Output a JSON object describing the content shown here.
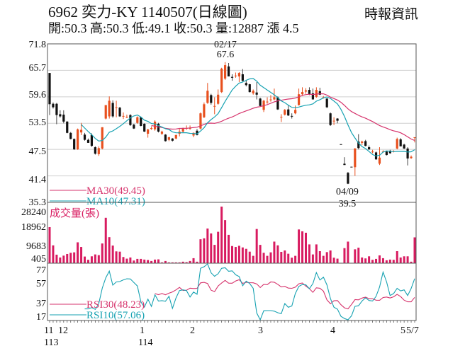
{
  "header": {
    "title": "6962  奕力-KY 1140507(日線圖)",
    "quote": "開:50.3 高:50.3 低:49.1 收:50.3 量:12887 漲 4.5",
    "source": "時報資訊"
  },
  "colors": {
    "up": "#e8501e",
    "down": "#111111",
    "ma30": "#d6336c",
    "ma10": "#17a2b2",
    "volume": "#d81b60",
    "rsi30": "#d6336c",
    "rsi10": "#17a2b2",
    "grid": "#cfcfcf"
  },
  "xaxis": {
    "months": [
      "11",
      "12",
      "1",
      "2",
      "3",
      "4",
      "5",
      "5/7"
    ],
    "years": [
      "113",
      "114"
    ]
  },
  "chart_data": [
    {
      "type": "candlestick",
      "ylim": [
        35.3,
        71.8
      ],
      "yticks": [
        "71.8",
        "65.7",
        "59.6",
        "53.5",
        "47.5",
        "41.4",
        "35.3"
      ],
      "grid": true,
      "legend": {
        "ma30": "MA30(49.45)",
        "ma10": "MA10(47.31)"
      },
      "annotations": [
        {
          "date": "02/17",
          "value": "67.6"
        },
        {
          "date": "04/09",
          "value": "39.5"
        }
      ],
      "ohlc": [
        [
          65.1,
          65.1,
          55.4,
          57.9
        ],
        [
          58.0,
          58.3,
          56.9,
          57.2
        ],
        [
          58,
          58.2,
          53.3,
          55.4
        ],
        [
          55.6,
          56.5,
          54.8,
          55.1
        ],
        [
          55.5,
          56.5,
          53.5,
          53.9
        ],
        [
          53.9,
          54,
          51.2,
          51.3
        ],
        [
          51.3,
          51.5,
          49.8,
          49.9
        ],
        [
          49.9,
          50,
          47.4,
          47.5
        ],
        [
          47.5,
          52.3,
          47.4,
          52.1
        ],
        [
          51.4,
          53.6,
          50.8,
          52
        ],
        [
          50.9,
          51.3,
          49.5,
          49.7
        ],
        [
          49.7,
          50,
          49,
          49
        ],
        [
          50.8,
          51.2,
          48.1,
          48.3
        ],
        [
          48,
          48.2,
          46.3,
          46.5
        ],
        [
          46.4,
          48.2,
          46,
          47.8
        ],
        [
          47.7,
          52.6,
          47.5,
          52.6
        ],
        [
          54.6,
          57.7,
          54.4,
          57.7
        ],
        [
          55.1,
          59.7,
          54.6,
          58.7
        ],
        [
          58.2,
          58.8,
          54.8,
          55.1
        ],
        [
          57.2,
          58.7,
          54.9,
          57.2
        ],
        [
          57.1,
          57.3,
          55,
          55.1
        ],
        [
          55.1,
          56,
          54.5,
          55.2
        ],
        [
          55,
          55.5,
          54.7,
          55
        ],
        [
          55.4,
          55.6,
          52.9,
          53.1
        ],
        [
          53.2,
          53.4,
          52.2,
          52.3
        ],
        [
          53.6,
          55.1,
          53.4,
          54.9
        ],
        [
          54.9,
          55,
          52.8,
          52.9
        ],
        [
          53.4,
          53.5,
          51.5,
          51.6
        ],
        [
          51.1,
          52.2,
          50.2,
          52.1
        ],
        [
          52.2,
          52.8,
          52,
          52.4
        ],
        [
          52.1,
          54.2,
          51.8,
          53.9
        ],
        [
          53.4,
          53.6,
          51.4,
          51.6
        ],
        [
          51.1,
          51.8,
          50.8,
          51.6
        ],
        [
          50.9,
          51,
          49.3,
          49.4
        ],
        [
          49.7,
          50.4,
          49.4,
          50.3
        ],
        [
          50,
          50.1,
          49.3,
          49.5
        ],
        [
          50,
          50.9,
          49.8,
          50.8
        ],
        [
          51.1,
          52.2,
          50.5,
          51.6
        ],
        [
          51.6,
          52.5,
          51.4,
          52.3
        ],
        [
          52.4,
          53,
          52,
          52.4
        ],
        [
          52.4,
          53,
          52,
          52.4
        ],
        [
          50.7,
          51.4,
          50.3,
          51.3
        ],
        [
          51.8,
          52.2,
          50.7,
          50.8
        ],
        [
          52.3,
          56,
          52.1,
          55.8
        ],
        [
          54.9,
          58.3,
          54.7,
          57.9
        ],
        [
          58.2,
          62.8,
          58,
          61
        ],
        [
          60,
          60.3,
          57.8,
          58.2
        ],
        [
          57.4,
          59.5,
          55.6,
          57.5
        ],
        [
          58,
          61.3,
          57.8,
          60.1
        ],
        [
          60.7,
          66.3,
          60.5,
          66.1
        ],
        [
          63.8,
          67.6,
          63.5,
          66.9
        ],
        [
          66.6,
          67.4,
          64.3,
          64.3
        ],
        [
          64.2,
          64.8,
          63.3,
          64
        ],
        [
          64.5,
          65.2,
          64,
          64.5
        ],
        [
          64.3,
          65.3,
          63,
          65.1
        ],
        [
          64.8,
          66,
          63.1,
          63.3
        ],
        [
          62.8,
          63.5,
          62,
          62.3
        ],
        [
          62.5,
          62.6,
          60.6,
          60.7
        ],
        [
          60.4,
          61.3,
          60.1,
          61
        ],
        [
          60.6,
          63,
          59,
          60.1
        ],
        [
          59.2,
          59.4,
          57.5,
          57.5
        ],
        [
          56.6,
          58.9,
          56.1,
          58.7
        ],
        [
          58.5,
          59.5,
          58,
          58.5
        ],
        [
          59,
          60,
          58.5,
          59
        ],
        [
          59,
          61.5,
          58.8,
          59.5
        ],
        [
          59.5,
          59.7,
          56.6,
          56.7
        ],
        [
          55,
          55.6,
          53.8,
          55
        ],
        [
          55.5,
          56.8,
          55.3,
          56.6
        ],
        [
          56.7,
          57.6,
          55.2,
          55.3
        ],
        [
          55.2,
          55.8,
          54.6,
          55.1
        ],
        [
          55.8,
          57.6,
          55.6,
          56.6
        ],
        [
          57.7,
          61.5,
          57.6,
          60.2
        ],
        [
          60.2,
          61.8,
          59.8,
          60.7
        ],
        [
          60.8,
          61.6,
          60.3,
          61.1
        ],
        [
          61.2,
          61.8,
          60,
          60.2
        ],
        [
          60.4,
          61.5,
          59,
          59
        ],
        [
          59.6,
          61.8,
          59.4,
          61.2
        ],
        [
          60.9,
          61.7,
          60,
          60.1
        ],
        [
          59.5,
          59.8,
          59.2,
          59.5
        ],
        [
          59.2,
          59.3,
          57,
          57.2
        ],
        [
          55.8,
          56,
          52.9,
          53.1
        ],
        [
          54.1,
          54.9,
          53.1,
          54.1
        ],
        [
          54.6,
          54.7,
          53.5,
          54.1
        ],
        [
          48.7,
          48.7,
          48.6,
          48.6
        ],
        [
          44.2,
          45.7,
          43.9,
          43.9
        ],
        [
          42.1,
          42.3,
          39.5,
          39.6
        ],
        [
          43.5,
          43.5,
          43.4,
          43.4
        ],
        [
          43.4,
          47.8,
          41.4,
          47.7
        ],
        [
          49.3,
          51,
          47.5,
          47.8
        ],
        [
          49,
          49.5,
          48.5,
          49.3
        ],
        [
          49.4,
          49.7,
          48.2,
          48.3
        ],
        [
          48,
          48.4,
          47.4,
          47.5
        ],
        [
          47,
          47.4,
          46.6,
          47
        ],
        [
          46.8,
          47,
          45.1,
          45.2
        ],
        [
          44.2,
          48,
          43.9,
          45.6
        ],
        [
          47,
          47.3,
          46.8,
          47
        ],
        [
          47,
          47.1,
          46.1,
          46.2
        ],
        [
          47.2,
          47.4,
          46.5,
          46.6
        ],
        [
          47,
          47.3,
          46.8,
          47.1
        ],
        [
          47.7,
          50.2,
          47.5,
          49.9
        ],
        [
          49.8,
          50.1,
          48.2,
          48.2
        ],
        [
          48.6,
          48.8,
          47.6,
          47.7
        ],
        [
          47.7,
          48,
          43.8,
          45.4
        ],
        [
          45.5,
          46.1,
          45.3,
          45.8
        ],
        [
          50.3,
          50.3,
          49.1,
          50.3
        ]
      ]
    },
    {
      "type": "bar",
      "title": "成交量(張)",
      "ylim": [
        405,
        28240
      ],
      "yticks": [
        "28240",
        "18962",
        "9683",
        "405"
      ],
      "values": [
        18000,
        8900,
        4250,
        2850,
        3780,
        4600,
        5180,
        5410,
        10420,
        8100,
        3320,
        1690,
        3430,
        4370,
        4020,
        9840,
        22660,
        13000,
        8800,
        5900,
        5760,
        3085,
        2270,
        2850,
        1340,
        2150,
        2150,
        1800,
        1570,
        1100,
        1800,
        1920,
        405,
        1100,
        405,
        405,
        405,
        405,
        750,
        520,
        1100,
        2500,
        750,
        11940,
        12400,
        17300,
        14850,
        9140,
        15670,
        28240,
        21490,
        14150,
        8560,
        8100,
        8680,
        7860,
        7160,
        5760,
        3670,
        17060,
        9140,
        5180,
        3670,
        5410,
        10770,
        8910,
        5650,
        6350,
        4720,
        2740,
        3670,
        16830,
        15900,
        15200,
        9380,
        4370,
        9380,
        6000,
        3670,
        5530,
        6350,
        2740,
        2270,
        200,
        7510,
        10770,
        200,
        6930,
        7740,
        2850,
        2390,
        3430,
        1690,
        2150,
        3900,
        2500,
        1450,
        1800,
        1690,
        6000,
        2850,
        3430,
        3430,
        750,
        12887
      ]
    },
    {
      "type": "line",
      "yticks": [
        "77",
        "57",
        "37",
        "17"
      ],
      "legend": {
        "rsi30": "RSI30(48.23)",
        "rsi10": "RSI10(57.06)"
      }
    }
  ]
}
